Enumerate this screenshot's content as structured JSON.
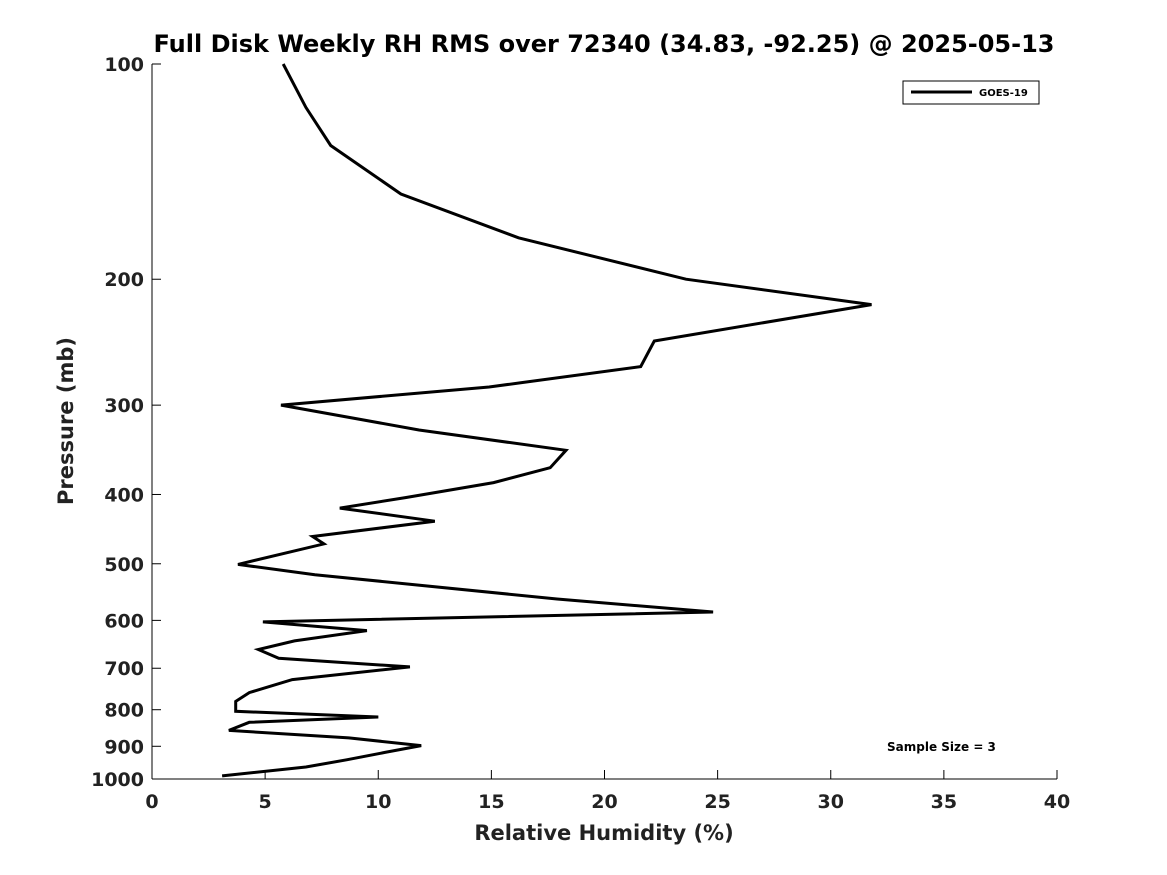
{
  "chart_data": {
    "type": "line",
    "title": "Full Disk Weekly RH RMS over 72340 (34.83, -92.25) @ 2025-05-13",
    "xlabel": "Relative Humidity (%)",
    "ylabel": "Pressure (mb)",
    "xlim": [
      0,
      40
    ],
    "ylim": [
      1000,
      100
    ],
    "yscale": "log",
    "x_ticks": [
      "0",
      "5",
      "10",
      "15",
      "20",
      "25",
      "30",
      "35",
      "40"
    ],
    "y_ticks": [
      "100",
      "200",
      "300",
      "400",
      "500",
      "600",
      "700",
      "800",
      "900",
      "1000"
    ],
    "grid": false,
    "legend_position": "top-right",
    "series": [
      {
        "name": "GOES-19",
        "color": "#000000",
        "x": [
          5.8,
          6.8,
          7.9,
          11.0,
          16.2,
          23.6,
          31.8,
          22.2,
          21.6,
          14.9,
          5.7,
          11.8,
          18.3,
          17.6,
          15.1,
          11.2,
          8.3,
          12.5,
          7.1,
          7.6,
          3.8,
          7.2,
          17.9,
          24.8,
          4.9,
          9.5,
          6.3,
          4.7,
          5.6,
          11.4,
          6.2,
          4.3,
          3.7,
          3.7,
          10.0,
          4.3,
          3.4,
          8.7,
          11.9,
          10.3,
          8.6,
          6.8,
          3.1
        ],
        "y": [
          100,
          115,
          130,
          152,
          175,
          200,
          217,
          244,
          265,
          283,
          300,
          325,
          347,
          367,
          385,
          404,
          418,
          436,
          458,
          469,
          501,
          518,
          560,
          584,
          603,
          620,
          641,
          659,
          678,
          697,
          726,
          757,
          779,
          804,
          819,
          833,
          855,
          876,
          898,
          918,
          940,
          962,
          990
        ]
      }
    ],
    "annotations": {
      "sample_size": "Sample Size = 3"
    }
  }
}
